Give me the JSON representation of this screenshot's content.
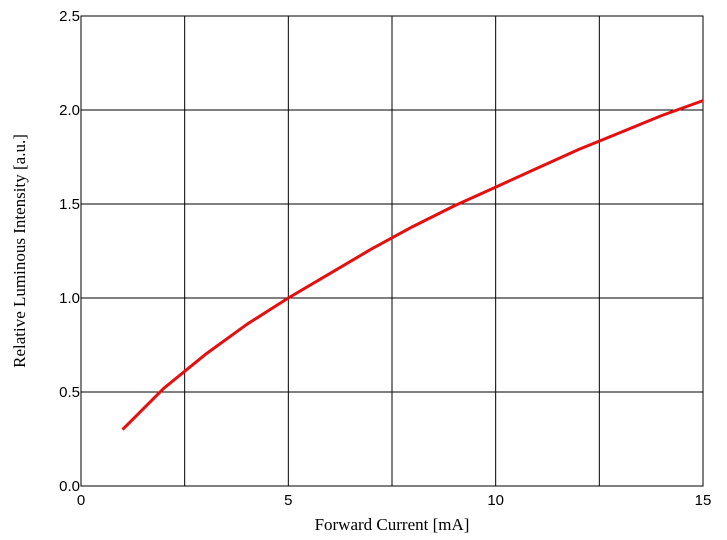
{
  "chart_data": {
    "type": "line",
    "xlabel": "Forward Current [mA]",
    "ylabel": "Relative Luminous Intensity [a.u.]",
    "xlim": [
      0,
      15
    ],
    "ylim": [
      0,
      2.5
    ],
    "x_ticks": [
      "0",
      "5",
      "10",
      "15"
    ],
    "y_ticks": [
      "0.0",
      "0.5",
      "1.0",
      "1.5",
      "2.0",
      "2.5"
    ],
    "grid": true,
    "series": [
      {
        "color": "#e41010",
        "x": [
          1,
          2,
          3,
          4,
          5,
          6,
          7,
          8,
          9,
          10,
          11,
          12,
          13,
          14,
          15
        ],
        "y": [
          0.3,
          0.52,
          0.7,
          0.86,
          1.0,
          1.13,
          1.26,
          1.38,
          1.49,
          1.59,
          1.69,
          1.79,
          1.88,
          1.97,
          2.05
        ]
      }
    ]
  }
}
